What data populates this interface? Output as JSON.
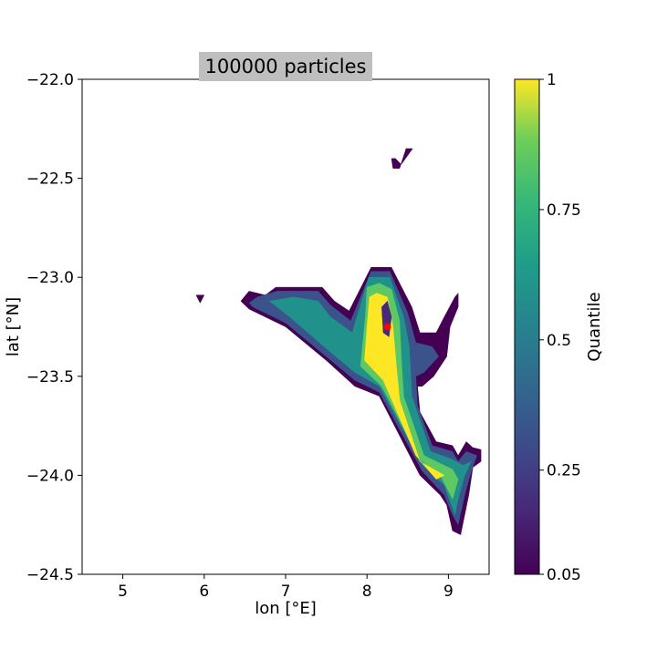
{
  "chart_data": {
    "type": "contour",
    "title": "100000 particles",
    "xlabel": "lon [°E]",
    "ylabel": "lat [°N]",
    "xlim": [
      4.5,
      9.5
    ],
    "ylim": [
      -24.5,
      -22.0
    ],
    "x_ticks": [
      {
        "value": 5,
        "label": "5"
      },
      {
        "value": 6,
        "label": "6"
      },
      {
        "value": 7,
        "label": "7"
      },
      {
        "value": 8,
        "label": "8"
      },
      {
        "value": 9,
        "label": "9"
      }
    ],
    "y_ticks": [
      {
        "value": -22.0,
        "label": "−22.0"
      },
      {
        "value": -22.5,
        "label": "−22.5"
      },
      {
        "value": -23.0,
        "label": "−23.0"
      },
      {
        "value": -23.5,
        "label": "−23.5"
      },
      {
        "value": -24.0,
        "label": "−24.0"
      },
      {
        "value": -24.5,
        "label": "−24.5"
      }
    ],
    "grid": false,
    "colorbar": {
      "label": "Quantile",
      "range": [
        0.05,
        1.0
      ],
      "colormap": "viridis",
      "ticks": [
        {
          "value": 1.0,
          "label": "1"
        },
        {
          "value": 0.75,
          "label": "0.75"
        },
        {
          "value": 0.5,
          "label": "0.5"
        },
        {
          "value": 0.25,
          "label": "0.25"
        },
        {
          "value": 0.05,
          "label": "0.05"
        }
      ]
    },
    "release_point": {
      "lon": 8.25,
      "lat": -23.25,
      "color": "#ff0000"
    },
    "contour_levels": [
      {
        "level": 0.05,
        "color": "#440154",
        "regions": [
          [
            [
              8.3,
              -22.4
            ],
            [
              8.35,
              -22.4
            ],
            [
              8.42,
              -22.43
            ],
            [
              8.56,
              -22.35
            ],
            [
              8.48,
              -22.35
            ],
            [
              8.4,
              -22.45
            ],
            [
              8.32,
              -22.45
            ]
          ],
          [
            [
              5.9,
              -23.09
            ],
            [
              6.0,
              -23.09
            ],
            [
              5.95,
              -23.13
            ]
          ],
          [
            [
              6.45,
              -23.12
            ],
            [
              6.55,
              -23.07
            ],
            [
              6.75,
              -23.09
            ],
            [
              6.88,
              -23.05
            ],
            [
              7.45,
              -23.05
            ],
            [
              7.6,
              -23.12
            ],
            [
              7.78,
              -23.17
            ],
            [
              8.05,
              -22.95
            ],
            [
              8.3,
              -22.95
            ],
            [
              8.55,
              -23.15
            ],
            [
              8.65,
              -23.28
            ],
            [
              8.85,
              -23.28
            ],
            [
              8.95,
              -23.2
            ],
            [
              9.08,
              -23.1
            ],
            [
              9.12,
              -23.08
            ],
            [
              9.12,
              -23.15
            ],
            [
              9.02,
              -23.25
            ],
            [
              8.98,
              -23.4
            ],
            [
              8.82,
              -23.5
            ],
            [
              8.68,
              -23.55
            ],
            [
              8.62,
              -23.55
            ],
            [
              8.65,
              -23.68
            ],
            [
              8.85,
              -23.83
            ],
            [
              9.05,
              -23.85
            ],
            [
              9.12,
              -23.9
            ],
            [
              9.22,
              -23.83
            ],
            [
              9.3,
              -23.86
            ],
            [
              9.4,
              -23.87
            ],
            [
              9.4,
              -23.93
            ],
            [
              9.3,
              -23.96
            ],
            [
              9.25,
              -24.1
            ],
            [
              9.15,
              -24.3
            ],
            [
              9.05,
              -24.28
            ],
            [
              8.98,
              -24.15
            ],
            [
              8.9,
              -24.1
            ],
            [
              8.65,
              -24.0
            ],
            [
              8.15,
              -23.6
            ],
            [
              7.85,
              -23.55
            ],
            [
              7.5,
              -23.42
            ],
            [
              7.0,
              -23.25
            ],
            [
              6.55,
              -23.16
            ]
          ]
        ]
      },
      {
        "level": 0.25,
        "color": "#3b528b",
        "regions": [
          [
            [
              6.55,
              -23.13
            ],
            [
              6.65,
              -23.1
            ],
            [
              6.9,
              -23.07
            ],
            [
              7.4,
              -23.07
            ],
            [
              7.55,
              -23.14
            ],
            [
              7.8,
              -23.22
            ],
            [
              8.05,
              -22.97
            ],
            [
              8.28,
              -22.97
            ],
            [
              8.5,
              -23.18
            ],
            [
              8.6,
              -23.33
            ],
            [
              8.8,
              -23.35
            ],
            [
              8.88,
              -23.4
            ],
            [
              8.7,
              -23.48
            ],
            [
              8.6,
              -23.5
            ],
            [
              8.62,
              -23.65
            ],
            [
              8.8,
              -23.85
            ],
            [
              9.05,
              -23.88
            ],
            [
              9.12,
              -23.93
            ],
            [
              9.22,
              -23.88
            ],
            [
              9.35,
              -23.9
            ],
            [
              9.28,
              -23.98
            ],
            [
              9.2,
              -24.1
            ],
            [
              9.12,
              -24.25
            ],
            [
              9.05,
              -24.2
            ],
            [
              8.95,
              -24.1
            ],
            [
              8.68,
              -23.98
            ],
            [
              8.15,
              -23.58
            ],
            [
              7.85,
              -23.52
            ],
            [
              7.5,
              -23.4
            ],
            [
              7.0,
              -23.23
            ],
            [
              6.6,
              -23.15
            ]
          ]
        ]
      },
      {
        "level": 0.5,
        "color": "#21918c",
        "regions": [
          [
            [
              6.8,
              -23.12
            ],
            [
              7.1,
              -23.1
            ],
            [
              7.4,
              -23.12
            ],
            [
              7.55,
              -23.2
            ],
            [
              7.82,
              -23.28
            ],
            [
              8.02,
              -23.0
            ],
            [
              8.28,
              -23.0
            ],
            [
              8.45,
              -23.2
            ],
            [
              8.52,
              -23.35
            ],
            [
              8.55,
              -23.6
            ],
            [
              8.78,
              -23.88
            ],
            [
              9.05,
              -23.92
            ],
            [
              9.18,
              -23.95
            ],
            [
              9.28,
              -23.93
            ],
            [
              9.2,
              -24.0
            ],
            [
              9.12,
              -24.12
            ],
            [
              9.08,
              -24.2
            ],
            [
              8.95,
              -24.05
            ],
            [
              8.68,
              -23.95
            ],
            [
              8.15,
              -23.55
            ],
            [
              7.85,
              -23.48
            ],
            [
              7.5,
              -23.36
            ],
            [
              7.05,
              -23.2
            ]
          ]
        ]
      },
      {
        "level": 0.75,
        "color": "#5ec962",
        "regions": [
          [
            [
              7.92,
              -23.45
            ],
            [
              7.98,
              -23.2
            ],
            [
              8.0,
              -23.05
            ],
            [
              8.15,
              -23.03
            ],
            [
              8.3,
              -23.06
            ],
            [
              8.4,
              -23.22
            ],
            [
              8.42,
              -23.4
            ],
            [
              8.45,
              -23.6
            ],
            [
              8.7,
              -23.9
            ],
            [
              9.05,
              -23.97
            ],
            [
              9.12,
              -24.02
            ],
            [
              9.05,
              -24.12
            ],
            [
              8.9,
              -24.0
            ],
            [
              8.65,
              -23.92
            ],
            [
              8.18,
              -23.55
            ]
          ]
        ]
      },
      {
        "level": 1.0,
        "color": "#fde725",
        "regions": [
          [
            [
              7.97,
              -23.42
            ],
            [
              8.0,
              -23.25
            ],
            [
              8.03,
              -23.1
            ],
            [
              8.12,
              -23.08
            ],
            [
              8.25,
              -23.1
            ],
            [
              8.32,
              -23.25
            ],
            [
              8.35,
              -23.4
            ],
            [
              8.4,
              -23.62
            ],
            [
              8.65,
              -23.93
            ],
            [
              8.95,
              -24.0
            ],
            [
              8.85,
              -24.02
            ],
            [
              8.6,
              -23.9
            ],
            [
              8.2,
              -23.52
            ]
          ]
        ]
      },
      {
        "level": 0.05,
        "color": "#482878",
        "regions": [
          [
            [
              8.18,
              -23.15
            ],
            [
              8.25,
              -23.12
            ],
            [
              8.3,
              -23.2
            ],
            [
              8.27,
              -23.3
            ],
            [
              8.2,
              -23.28
            ]
          ]
        ]
      }
    ]
  }
}
